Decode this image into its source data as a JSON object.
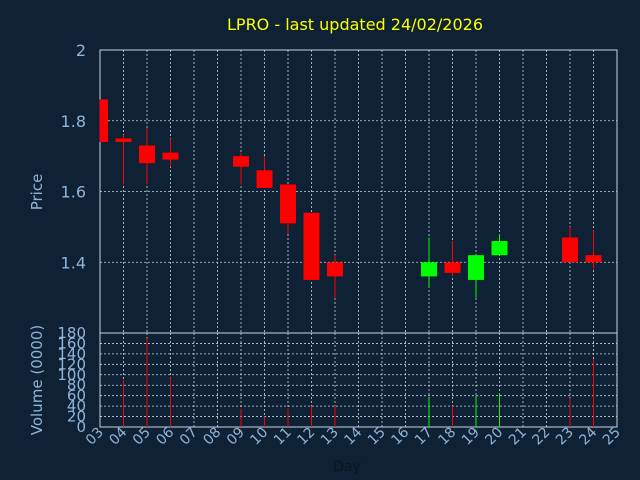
{
  "chart_data": {
    "type": "candlestick",
    "title": "LPRO - last updated 24/02/2026",
    "xlabel": "Day",
    "price_ylabel": "Price",
    "volume_ylabel": "Volume (0000)",
    "x_tick_labels": [
      "03",
      "04",
      "05",
      "06",
      "07",
      "08",
      "09",
      "10",
      "11",
      "12",
      "13",
      "14",
      "15",
      "16",
      "17",
      "18",
      "19",
      "20",
      "21",
      "22",
      "23",
      "24",
      "25"
    ],
    "price_ylim": [
      1.2,
      2.0
    ],
    "price_ticks": [
      "1.4",
      "1.6",
      "1.8",
      "2"
    ],
    "volume_ylim": [
      0,
      180
    ],
    "volume_ticks": [
      "0",
      "20",
      "40",
      "60",
      "80",
      "100",
      "120",
      "140",
      "160",
      "180"
    ],
    "grid": true,
    "colors": {
      "background": "#0f2135",
      "text_title": "#ffff00",
      "axis_text": "#8fb4d8",
      "grid": "#c8d4e0",
      "up": "#00ff00",
      "down": "#ff0000"
    },
    "candles": [
      {
        "day": "03",
        "open": 1.86,
        "high": 1.86,
        "low": 1.74,
        "close": 1.74,
        "volume": 0
      },
      {
        "day": "04",
        "open": 1.75,
        "high": 1.76,
        "low": 1.62,
        "close": 1.74,
        "volume": 90
      },
      {
        "day": "05",
        "open": 1.73,
        "high": 1.78,
        "low": 1.62,
        "close": 1.68,
        "volume": 170
      },
      {
        "day": "06",
        "open": 1.71,
        "high": 1.75,
        "low": 1.67,
        "close": 1.69,
        "volume": 95
      },
      {
        "day": "09",
        "open": 1.7,
        "high": 1.71,
        "low": 1.62,
        "close": 1.67,
        "volume": 35
      },
      {
        "day": "10",
        "open": 1.66,
        "high": 1.7,
        "low": 1.61,
        "close": 1.61,
        "volume": 20
      },
      {
        "day": "11",
        "open": 1.62,
        "high": 1.62,
        "low": 1.48,
        "close": 1.51,
        "volume": 35
      },
      {
        "day": "12",
        "open": 1.54,
        "high": 1.54,
        "low": 1.35,
        "close": 1.35,
        "volume": 40
      },
      {
        "day": "13",
        "open": 1.4,
        "high": 1.42,
        "low": 1.3,
        "close": 1.36,
        "volume": 40
      },
      {
        "day": "17",
        "open": 1.36,
        "high": 1.47,
        "low": 1.33,
        "close": 1.4,
        "volume": 55
      },
      {
        "day": "18",
        "open": 1.4,
        "high": 1.46,
        "low": 1.36,
        "close": 1.37,
        "volume": 40
      },
      {
        "day": "19",
        "open": 1.35,
        "high": 1.42,
        "low": 1.3,
        "close": 1.42,
        "volume": 60
      },
      {
        "day": "20",
        "open": 1.42,
        "high": 1.48,
        "low": 1.42,
        "close": 1.46,
        "volume": 65
      },
      {
        "day": "23",
        "open": 1.47,
        "high": 1.5,
        "low": 1.4,
        "close": 1.4,
        "volume": 55
      },
      {
        "day": "24",
        "open": 1.42,
        "high": 1.49,
        "low": 1.38,
        "close": 1.4,
        "volume": 130
      }
    ]
  }
}
